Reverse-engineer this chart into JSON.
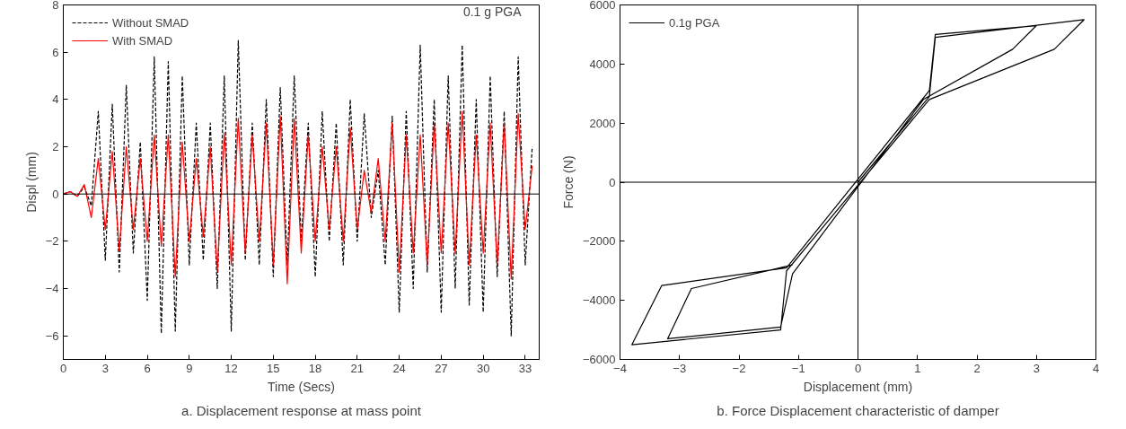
{
  "chart_data": [
    {
      "type": "line",
      "xlabel": "Time (Secs)",
      "ylabel": "Displ (mm)",
      "xlim": [
        0,
        34
      ],
      "ylim": [
        -7,
        8
      ],
      "xticks": [
        0,
        3,
        6,
        9,
        12,
        15,
        18,
        21,
        24,
        27,
        30,
        33
      ],
      "yticks": [
        -6,
        -4,
        -2,
        0,
        2,
        4,
        6,
        8
      ],
      "grid": false,
      "legend": "top left",
      "annotations": [
        "0.1 g PGA",
        "a. Displacement response at mass point"
      ],
      "x": [
        0,
        0.5,
        1,
        1.5,
        2,
        2.5,
        3,
        3.5,
        4,
        4.5,
        5,
        5.5,
        6,
        6.5,
        7,
        7.5,
        8,
        8.5,
        9,
        9.5,
        10,
        10.5,
        11,
        11.5,
        12,
        12.5,
        13,
        13.5,
        14,
        14.5,
        15,
        15.5,
        16,
        16.5,
        17,
        17.5,
        18,
        18.5,
        19,
        19.5,
        20,
        20.5,
        21,
        21.5,
        22,
        22.5,
        23,
        23.5,
        24,
        24.5,
        25,
        25.5,
        26,
        26.5,
        27,
        27.5,
        28,
        28.5,
        29,
        29.5,
        30,
        30.5,
        31,
        31.5,
        32,
        32.5,
        33,
        33.5
      ],
      "series": [
        {
          "name": "Without SMAD",
          "color": "#000000",
          "line_style": "dashed",
          "values": [
            0,
            0.1,
            -0.1,
            0.3,
            -0.5,
            3.5,
            -2.8,
            3.8,
            -3.3,
            4.6,
            -2.5,
            2.2,
            -4.5,
            5.8,
            -5.9,
            5.6,
            -5.8,
            5.0,
            -3.0,
            3.0,
            -2.8,
            3.0,
            -4.0,
            5.0,
            -5.8,
            6.5,
            -2.8,
            3.0,
            -3.0,
            4.0,
            -3.5,
            4.5,
            -3.0,
            5.0,
            -2.0,
            3.0,
            -3.5,
            3.5,
            -2.0,
            3.0,
            -3.0,
            4.0,
            -2.0,
            3.4,
            -1.0,
            1.0,
            -3.0,
            3.3,
            -5.0,
            3.5,
            -4.0,
            6.3,
            -3.3,
            4.0,
            -5.0,
            5.0,
            -4.0,
            6.3,
            -4.7,
            4.0,
            -5.0,
            5.0,
            -3.5,
            3.5,
            -6.0,
            5.8,
            -3.0,
            2.0
          ]
        },
        {
          "name": "With SMAD",
          "color": "#ff0000",
          "line_style": "solid",
          "values": [
            0,
            0.1,
            -0.1,
            0.4,
            -1.0,
            1.5,
            -1.5,
            1.8,
            -2.4,
            2.0,
            -1.5,
            1.5,
            -2.0,
            2.5,
            -2.2,
            2.5,
            -3.5,
            2.2,
            -2.0,
            1.5,
            -1.8,
            2.0,
            -3.3,
            2.6,
            -3.0,
            3.2,
            -2.5,
            2.5,
            -2.0,
            3.0,
            -3.0,
            3.3,
            -3.8,
            3.2,
            -2.5,
            2.5,
            -2.0,
            2.0,
            -1.5,
            2.0,
            -2.0,
            2.8,
            -1.5,
            1.0,
            -0.8,
            1.5,
            -2.0,
            3.0,
            -3.3,
            2.5,
            -2.5,
            2.5,
            -3.0,
            3.0,
            -2.5,
            3.0,
            -2.5,
            3.5,
            -3.0,
            2.5,
            -2.5,
            3.0,
            -3.0,
            3.0,
            -3.6,
            3.4,
            -1.5,
            1.2
          ]
        }
      ],
      "ref_lines": [
        {
          "axis": "y",
          "value": 0,
          "color": "#000000"
        }
      ]
    },
    {
      "type": "line",
      "xlabel": "Displacement (mm)",
      "ylabel": "Force (N)",
      "xlim": [
        -4,
        4
      ],
      "ylim": [
        -6000,
        6000
      ],
      "xticks": [
        -4,
        -3,
        -2,
        -1,
        0,
        1,
        2,
        3,
        4
      ],
      "yticks": [
        -6000,
        -4000,
        -2000,
        0,
        2000,
        4000,
        6000
      ],
      "grid": false,
      "legend": "top left",
      "annotations": [
        "b. Force Displacement characteristic of damper"
      ],
      "x": [
        0,
        1.2,
        1.3,
        3.8,
        3.3,
        1.2,
        -1.2,
        -1.3,
        -3.8,
        -3.3,
        -1.2,
        1.2,
        1.3,
        3.0,
        2.6,
        1.1,
        -1.1,
        -1.3,
        -3.2,
        -2.8,
        -1.1
      ],
      "series": [
        {
          "name": "0.1g PGA",
          "color": "#000000",
          "line_style": "solid",
          "values": [
            0,
            2900,
            4900,
            5500,
            4500,
            2800,
            -3000,
            -5000,
            -5500,
            -3500,
            -2900,
            3100,
            5000,
            5300,
            4500,
            2800,
            -3100,
            -4900,
            -5300,
            -3600,
            -2800
          ]
        }
      ],
      "ref_lines": [
        {
          "axis": "x",
          "value": 0,
          "color": "#000000"
        },
        {
          "axis": "y",
          "value": 0,
          "color": "#000000"
        }
      ]
    }
  ]
}
